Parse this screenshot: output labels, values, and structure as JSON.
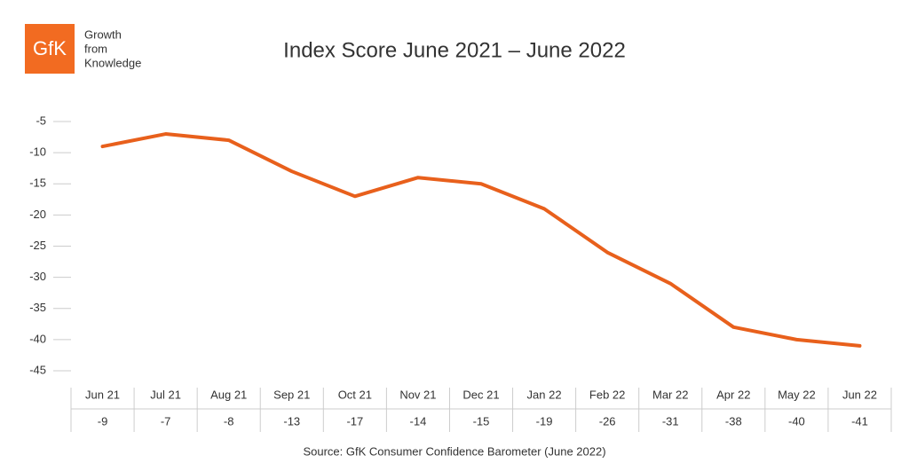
{
  "logo": {
    "mark": "GfK",
    "lines": [
      "Growth",
      "from",
      "Knowledge"
    ]
  },
  "chart_data": {
    "type": "line",
    "title": "Index Score June 2021 – June 2022",
    "categories": [
      "Jun 21",
      "Jul 21",
      "Aug 21",
      "Sep 21",
      "Oct 21",
      "Nov 21",
      "Dec 21",
      "Jan 22",
      "Feb 22",
      "Mar 22",
      "Apr 22",
      "May 22",
      "Jun 22"
    ],
    "values": [
      -9,
      -7,
      -8,
      -13,
      -17,
      -14,
      -15,
      -19,
      -26,
      -31,
      -38,
      -40,
      -41
    ],
    "color": "#e8601c",
    "ylim": [
      -45,
      -5
    ],
    "yticks": [
      -5,
      -10,
      -15,
      -20,
      -25,
      -30,
      -35,
      -40,
      -45
    ],
    "source": "Source: GfK Consumer Confidence Barometer (June 2022)"
  }
}
